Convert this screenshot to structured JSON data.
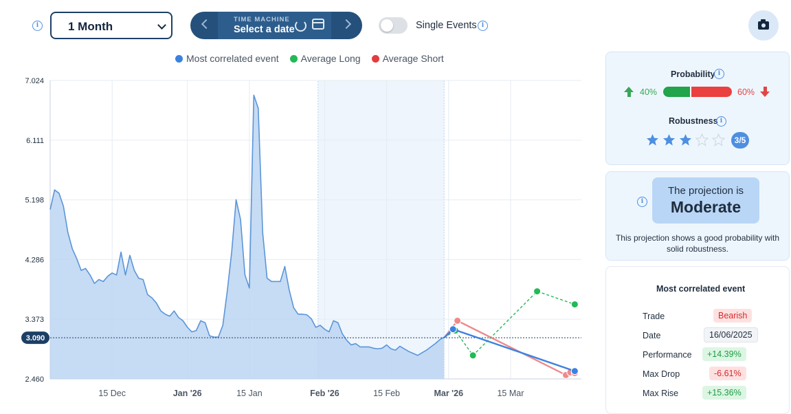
{
  "toolbar": {
    "period_value": "1 Month",
    "time_machine_caption": "TIME MACHINE",
    "time_machine_label": "Select a date",
    "single_events_label": "Single Events"
  },
  "legend": [
    {
      "label": "Most correlated event",
      "color": "#3b82e0"
    },
    {
      "label": "Average Long",
      "color": "#22b957"
    },
    {
      "label": "Average Short",
      "color": "#e43c3c"
    }
  ],
  "probability": {
    "title": "Probability",
    "long_pct": "40%",
    "short_pct": "60%",
    "long_fraction": 0.4
  },
  "robustness": {
    "title": "Robustness",
    "stars_filled": 3,
    "stars_total": 5,
    "badge": "3/5"
  },
  "projection": {
    "line1": "The projection is",
    "rating": "Moderate",
    "description": "This projection shows a good probability with solid robustness."
  },
  "most_correlated": {
    "title": "Most correlated event",
    "rows": [
      {
        "label": "Trade",
        "value": "Bearish",
        "tone": "neg"
      },
      {
        "label": "Date",
        "value": "16/06/2025",
        "tone": "neu"
      },
      {
        "label": "Performance",
        "value": "+14.39%",
        "tone": "pos"
      },
      {
        "label": "Max Drop",
        "value": "-6.61%",
        "tone": "neg"
      },
      {
        "label": "Max Rise",
        "value": "+15.36%",
        "tone": "pos"
      }
    ]
  },
  "chart_data": {
    "type": "area",
    "y_ticks": [
      "7.024",
      "6.111",
      "5.198",
      "4.286",
      "3.373",
      "2.460"
    ],
    "ylim": [
      2.46,
      7.024
    ],
    "current_value": 3.09,
    "current_label": "3.090",
    "x_ticks": [
      {
        "label": "15 Dec",
        "x": 14,
        "bold": false
      },
      {
        "label": "Jan '26",
        "x": 31,
        "bold": true
      },
      {
        "label": "15 Jan",
        "x": 45,
        "bold": false
      },
      {
        "label": "Feb '26",
        "x": 62,
        "bold": true
      },
      {
        "label": "15 Feb",
        "x": 76,
        "bold": false
      },
      {
        "label": "Mar '26",
        "x": 90,
        "bold": true
      },
      {
        "label": "15 Mar",
        "x": 104,
        "bold": false
      }
    ],
    "x_range": [
      0,
      120
    ],
    "highlight_window": [
      60.5,
      89
    ],
    "history_end": 89,
    "series": [
      {
        "name": "",
        "x": [
          0,
          1,
          2,
          3,
          4,
          5,
          6,
          7,
          8,
          9,
          10,
          11,
          12,
          13,
          14,
          15,
          16,
          17,
          18,
          19,
          20,
          21,
          22,
          23,
          24,
          25,
          26,
          27,
          28,
          29,
          30,
          31,
          32,
          33,
          34,
          35,
          36,
          37,
          38,
          39,
          40,
          41,
          42,
          43,
          44,
          45,
          46,
          47,
          48,
          49,
          50,
          51,
          52,
          53,
          54,
          55,
          56,
          57,
          58,
          59,
          60,
          61,
          62,
          63,
          64,
          65,
          66,
          67,
          68,
          69,
          70,
          71,
          72,
          73,
          74,
          75,
          76,
          77,
          78,
          79,
          80,
          81,
          82,
          83,
          84,
          85,
          86,
          87,
          88,
          89
        ],
        "y": [
          5.05,
          5.35,
          5.3,
          5.1,
          4.7,
          4.45,
          4.3,
          4.12,
          4.15,
          4.05,
          3.92,
          3.98,
          3.95,
          4.03,
          4.08,
          4.05,
          4.4,
          4.05,
          4.35,
          4.12,
          4.0,
          3.98,
          3.75,
          3.7,
          3.62,
          3.5,
          3.45,
          3.42,
          3.5,
          3.4,
          3.35,
          3.25,
          3.18,
          3.2,
          3.35,
          3.32,
          3.12,
          3.1,
          3.1,
          3.28,
          3.8,
          4.4,
          5.2,
          4.9,
          4.05,
          3.85,
          6.8,
          6.6,
          4.7,
          4.0,
          3.95,
          3.95,
          3.95,
          4.18,
          3.82,
          3.55,
          3.45,
          3.45,
          3.44,
          3.38,
          3.25,
          3.28,
          3.22,
          3.18,
          3.35,
          3.32,
          3.15,
          3.05,
          2.98,
          3.0,
          2.95,
          2.95,
          2.95,
          2.93,
          2.92,
          2.93,
          2.98,
          2.92,
          2.9,
          2.96,
          2.92,
          2.88,
          2.85,
          2.82,
          2.86,
          2.9,
          2.95,
          3.0,
          3.06,
          3.1
        ]
      },
      {
        "name": "Most correlated event",
        "x": [
          89,
          91,
          118.5
        ],
        "y": [
          3.09,
          3.22,
          2.58
        ]
      },
      {
        "name": "Average Long",
        "x": [
          89,
          91.5,
          95.5,
          110,
          118.5
        ],
        "y": [
          3.09,
          3.2,
          2.82,
          3.8,
          3.6
        ]
      },
      {
        "name": "Average Short",
        "x": [
          89,
          92,
          116.5,
          117.5,
          118.5
        ],
        "y": [
          3.09,
          3.35,
          2.52,
          2.56,
          2.55
        ]
      }
    ]
  }
}
